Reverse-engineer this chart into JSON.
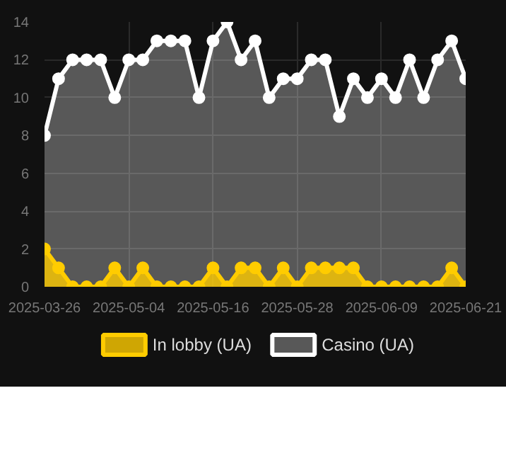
{
  "chart_data": {
    "type": "area",
    "categories": [
      "2025-03-26",
      null,
      null,
      null,
      null,
      null,
      "2025-05-04",
      null,
      null,
      null,
      null,
      null,
      "2025-05-16",
      null,
      null,
      null,
      null,
      null,
      "2025-05-28",
      null,
      null,
      null,
      null,
      null,
      "2025-06-09",
      null,
      null,
      null,
      null,
      null,
      "2025-06-21"
    ],
    "series": [
      {
        "name": "In lobby (UA)",
        "color": "#ffcc00",
        "values": [
          2,
          1,
          0,
          0,
          0,
          1,
          0,
          1,
          0,
          0,
          0,
          0,
          1,
          0,
          1,
          1,
          0,
          1,
          0,
          1,
          1,
          1,
          1,
          0,
          0,
          0,
          0,
          0,
          0,
          1,
          0
        ]
      },
      {
        "name": "Casino (UA)",
        "color": "#ffffff",
        "values": [
          8,
          11,
          12,
          12,
          12,
          10,
          12,
          12,
          13,
          13,
          13,
          10,
          13,
          14,
          12,
          13,
          10,
          11,
          11,
          12,
          12,
          9,
          11,
          10,
          11,
          10,
          12,
          10,
          12,
          13,
          11
        ]
      }
    ],
    "ylim": [
      0,
      14
    ],
    "yticks": [
      0,
      2,
      4,
      6,
      8,
      10,
      12,
      14
    ],
    "grid": true,
    "legend": "bottom",
    "marker": "circle",
    "line_style": "solid"
  }
}
